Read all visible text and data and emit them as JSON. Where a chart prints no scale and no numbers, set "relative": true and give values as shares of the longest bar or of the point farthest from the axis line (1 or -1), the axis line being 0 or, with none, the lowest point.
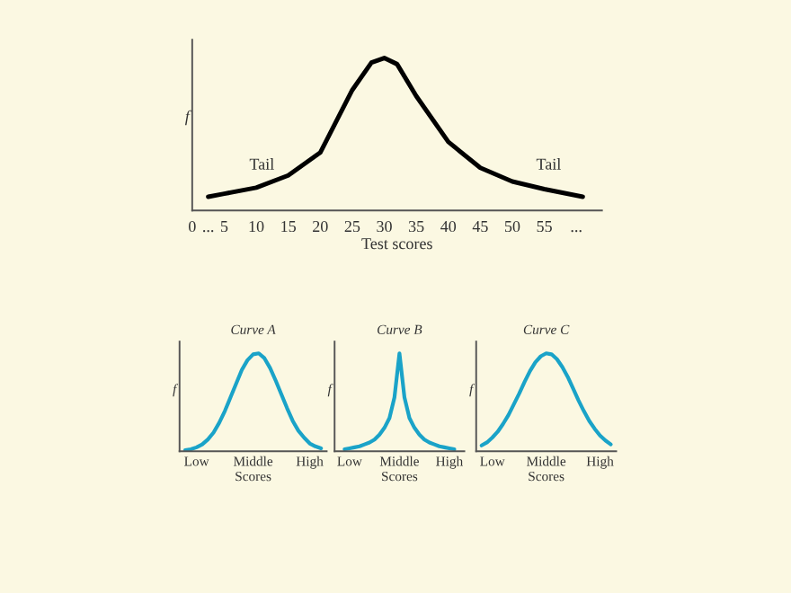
{
  "chart_data": [
    {
      "type": "line",
      "relative": true,
      "xlabel": "Test scores",
      "ylabel": "f",
      "xlim": [
        0,
        64
      ],
      "xticks": [
        0,
        {
          "value": 2.5,
          "label": "..."
        },
        5,
        10,
        15,
        20,
        25,
        30,
        35,
        40,
        45,
        50,
        55,
        {
          "value": 60,
          "label": "..."
        }
      ],
      "x": [
        2.5,
        5,
        10,
        15,
        20,
        25,
        28,
        30,
        32,
        35,
        40,
        45,
        50,
        55,
        61
      ],
      "series": [
        {
          "color": "#000000",
          "values": [
            0.09,
            0.11,
            0.15,
            0.23,
            0.38,
            0.79,
            0.97,
            1,
            0.96,
            0.75,
            0.45,
            0.28,
            0.19,
            0.14,
            0.09
          ]
        }
      ],
      "annotations": [
        "Tail",
        "Tail"
      ],
      "grid": false,
      "marker": "none",
      "line_style": "solid",
      "legend": false
    },
    {
      "type": "line",
      "relative": true,
      "title": "Curve A",
      "xlabel": "Scores",
      "ylabel": "f",
      "categories": [
        null,
        null,
        "Low",
        null,
        null,
        null,
        null,
        null,
        null,
        null,
        null,
        null,
        "Middle",
        null,
        null,
        null,
        null,
        null,
        null,
        null,
        null,
        null,
        "High",
        null,
        null
      ],
      "series": [
        {
          "color": "#1aa3c8",
          "values": [
            0.01,
            0.02,
            0.04,
            0.07,
            0.12,
            0.19,
            0.29,
            0.41,
            0.55,
            0.69,
            0.83,
            0.93,
            0.99,
            1,
            0.95,
            0.85,
            0.72,
            0.58,
            0.44,
            0.31,
            0.21,
            0.14,
            0.08,
            0.05,
            0.03
          ]
        }
      ],
      "grid": false,
      "marker": "none",
      "line_style": "solid",
      "legend": false
    },
    {
      "type": "line",
      "relative": true,
      "title": "Curve B",
      "xlabel": "Scores",
      "ylabel": "f",
      "categories": [
        null,
        null,
        "Low",
        null,
        null,
        null,
        null,
        null,
        null,
        null,
        null,
        null,
        "Middle",
        null,
        null,
        null,
        null,
        null,
        null,
        null,
        null,
        null,
        "High",
        null,
        null
      ],
      "series": [
        {
          "color": "#1aa3c8",
          "values": [
            null,
            0.02,
            0.03,
            0.04,
            0.05,
            0.07,
            0.09,
            0.12,
            0.17,
            0.24,
            0.34,
            0.55,
            1,
            0.55,
            0.34,
            0.24,
            0.17,
            0.12,
            0.09,
            0.07,
            0.05,
            0.04,
            0.03,
            0.02,
            null
          ]
        }
      ],
      "grid": false,
      "marker": "none",
      "line_style": "solid",
      "legend": false
    },
    {
      "type": "line",
      "relative": true,
      "title": "Curve C",
      "xlabel": "Scores",
      "ylabel": "f",
      "categories": [
        null,
        null,
        "Low",
        null,
        null,
        null,
        null,
        null,
        null,
        null,
        null,
        null,
        "Middle",
        null,
        null,
        null,
        null,
        null,
        null,
        null,
        null,
        null,
        "High",
        null,
        null
      ],
      "series": [
        {
          "color": "#1aa3c8",
          "values": [
            0.06,
            0.09,
            0.14,
            0.2,
            0.28,
            0.37,
            0.48,
            0.59,
            0.71,
            0.82,
            0.91,
            0.97,
            1,
            0.99,
            0.94,
            0.86,
            0.76,
            0.64,
            0.52,
            0.41,
            0.31,
            0.23,
            0.16,
            0.11,
            0.07
          ]
        }
      ],
      "grid": false,
      "marker": "none",
      "line_style": "solid",
      "legend": false
    }
  ]
}
